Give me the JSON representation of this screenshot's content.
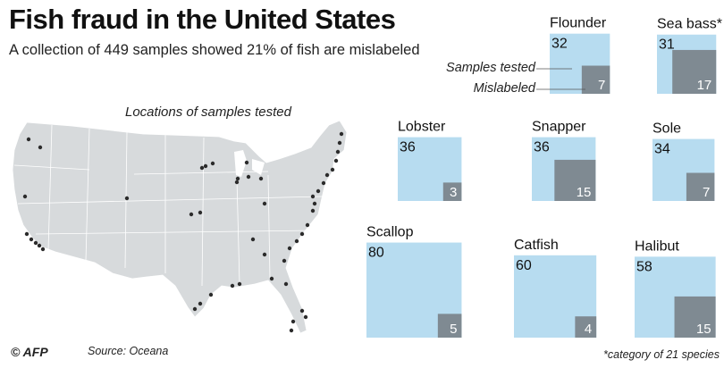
{
  "header": {
    "title": "Fish fraud in the United States",
    "subtitle": "A collection of 449 samples showed 21% of fish are mislabeled"
  },
  "map": {
    "caption": "Locations of samples tested"
  },
  "legend": {
    "tested_label": "Samples tested",
    "mislabeled_label": "Mislabeled"
  },
  "colors": {
    "tested": "#b7dcf0",
    "mislabeled": "#7f8a92",
    "land": "#d7dadc",
    "dot": "#2b2b2b"
  },
  "chart_data": {
    "type": "area",
    "title": "Fish fraud in the United States",
    "categories": [
      "Flounder",
      "Sea bass*",
      "Lobster",
      "Snapper",
      "Sole",
      "Scallop",
      "Catfish",
      "Halibut"
    ],
    "series": [
      {
        "name": "Samples tested",
        "values": [
          32,
          31,
          36,
          36,
          34,
          80,
          60,
          58
        ]
      },
      {
        "name": "Mislabeled",
        "values": [
          7,
          17,
          3,
          15,
          7,
          5,
          4,
          15
        ]
      }
    ]
  },
  "footer": {
    "copyright": "© AFP",
    "source": "Source: Oceana",
    "footnote": "*category of 21 species"
  }
}
